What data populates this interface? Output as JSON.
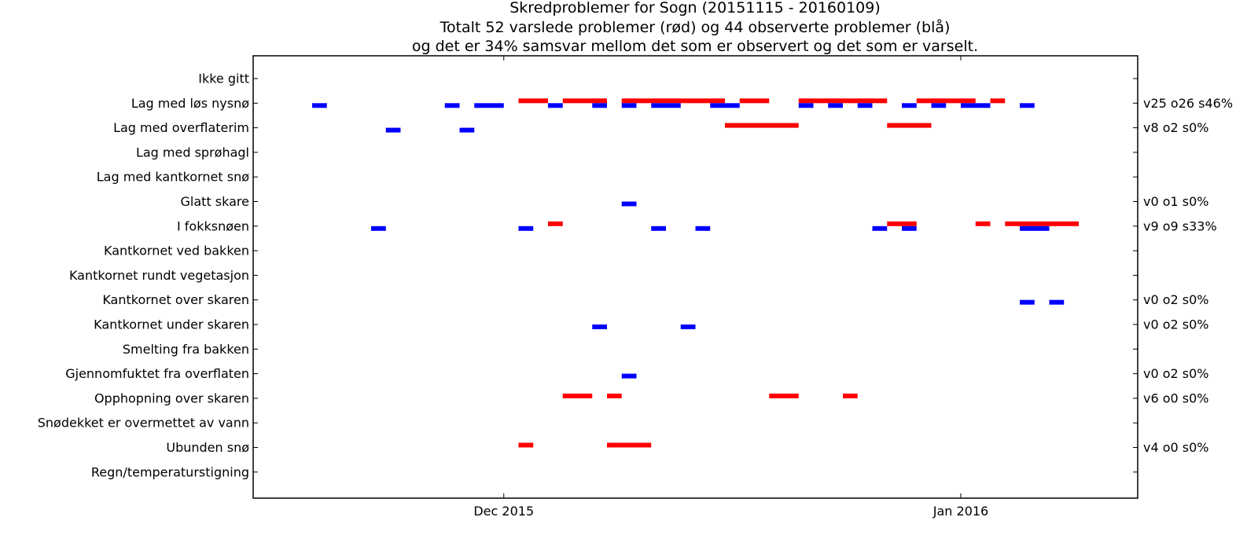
{
  "chart_data": {
    "type": "gantt",
    "title_lines": [
      "Skredproblemer for Sogn (20151115 - 20160109)",
      "Totalt 52 varslede problemer (rød) og 44 observerte problemer (blå)",
      "og det er 34% samsvar mellom det som er observert og det som er varselt."
    ],
    "x_range": [
      "2015-11-14",
      "2016-01-13"
    ],
    "x_ticks": [
      {
        "date": "2015-12-01",
        "label": "Dec 2015"
      },
      {
        "date": "2016-01-01",
        "label": "Jan 2016"
      }
    ],
    "categories": [
      "Ikke gitt",
      "Lag med løs nysnø",
      "Lag med overflaterim",
      "Lag med sprøhagl",
      "Lag med kantkornet snø",
      "Glatt skare",
      "I fokksnøen",
      "Kantkornet ved bakken",
      "Kantkornet rundt vegetasjon",
      "Kantkornet over skaren",
      "Kantkornet under skaren",
      "Smelting fra bakken",
      "Gjennomfuktet fra overflaten",
      "Opphopning over skaren",
      "Snødekket er overmettet av vann",
      "Ubunden snø",
      "Regn/temperaturstigning"
    ],
    "stats": {
      "Lag med løs nysnø": "v25 o26 s46%",
      "Lag med overflaterim": "v8 o2 s0%",
      "Glatt skare": "v0 o1 s0%",
      "I fokksnøen": "v9 o9 s33%",
      "Kantkornet over skaren": "v0 o2 s0%",
      "Kantkornet under skaren": "v0 o2 s0%",
      "Gjennomfuktet fra overflaten": "v0 o2 s0%",
      "Opphopning over skaren": "v6 o0 s0%",
      "Ubunden snø": "v4 o0 s0%"
    },
    "colors": {
      "forecast": "#ff0000",
      "observed": "#0000ff"
    },
    "series": [
      {
        "name": "varslet",
        "color": "#ff0000",
        "segments": [
          {
            "category": "Lag med løs nysnø",
            "start": "2015-12-02",
            "end": "2015-12-04"
          },
          {
            "category": "Lag med løs nysnø",
            "start": "2015-12-05",
            "end": "2015-12-08"
          },
          {
            "category": "Lag med løs nysnø",
            "start": "2015-12-09",
            "end": "2015-12-16"
          },
          {
            "category": "Lag med løs nysnø",
            "start": "2015-12-17",
            "end": "2015-12-19"
          },
          {
            "category": "Lag med løs nysnø",
            "start": "2015-12-21",
            "end": "2015-12-27"
          },
          {
            "category": "Lag med løs nysnø",
            "start": "2015-12-29",
            "end": "2016-01-02"
          },
          {
            "category": "Lag med løs nysnø",
            "start": "2016-01-03",
            "end": "2016-01-04"
          },
          {
            "category": "Lag med overflaterim",
            "start": "2015-12-16",
            "end": "2015-12-21"
          },
          {
            "category": "Lag med overflaterim",
            "start": "2015-12-27",
            "end": "2015-12-30"
          },
          {
            "category": "I fokksnøen",
            "start": "2015-12-04",
            "end": "2015-12-05"
          },
          {
            "category": "I fokksnøen",
            "start": "2015-12-27",
            "end": "2015-12-29"
          },
          {
            "category": "I fokksnøen",
            "start": "2016-01-02",
            "end": "2016-01-03"
          },
          {
            "category": "I fokksnøen",
            "start": "2016-01-04",
            "end": "2016-01-09"
          },
          {
            "category": "Opphopning over skaren",
            "start": "2015-12-05",
            "end": "2015-12-07"
          },
          {
            "category": "Opphopning over skaren",
            "start": "2015-12-08",
            "end": "2015-12-09"
          },
          {
            "category": "Opphopning over skaren",
            "start": "2015-12-19",
            "end": "2015-12-21"
          },
          {
            "category": "Opphopning over skaren",
            "start": "2015-12-24",
            "end": "2015-12-25"
          },
          {
            "category": "Ubunden snø",
            "start": "2015-12-02",
            "end": "2015-12-03"
          },
          {
            "category": "Ubunden snø",
            "start": "2015-12-08",
            "end": "2015-12-11"
          }
        ]
      },
      {
        "name": "observert",
        "color": "#0000ff",
        "segments": [
          {
            "category": "Lag med løs nysnø",
            "start": "2015-11-18",
            "end": "2015-11-19"
          },
          {
            "category": "Lag med løs nysnø",
            "start": "2015-11-27",
            "end": "2015-11-28"
          },
          {
            "category": "Lag med løs nysnø",
            "start": "2015-11-29",
            "end": "2015-12-01"
          },
          {
            "category": "Lag med løs nysnø",
            "start": "2015-12-04",
            "end": "2015-12-05"
          },
          {
            "category": "Lag med løs nysnø",
            "start": "2015-12-07",
            "end": "2015-12-08"
          },
          {
            "category": "Lag med løs nysnø",
            "start": "2015-12-09",
            "end": "2015-12-10"
          },
          {
            "category": "Lag med løs nysnø",
            "start": "2015-12-11",
            "end": "2015-12-13"
          },
          {
            "category": "Lag med løs nysnø",
            "start": "2015-12-15",
            "end": "2015-12-17"
          },
          {
            "category": "Lag med løs nysnø",
            "start": "2015-12-21",
            "end": "2015-12-22"
          },
          {
            "category": "Lag med løs nysnø",
            "start": "2015-12-23",
            "end": "2015-12-24"
          },
          {
            "category": "Lag med løs nysnø",
            "start": "2015-12-25",
            "end": "2015-12-26"
          },
          {
            "category": "Lag med løs nysnø",
            "start": "2015-12-28",
            "end": "2015-12-29"
          },
          {
            "category": "Lag med løs nysnø",
            "start": "2015-12-30",
            "end": "2015-12-31"
          },
          {
            "category": "Lag med løs nysnø",
            "start": "2016-01-01",
            "end": "2016-01-03"
          },
          {
            "category": "Lag med løs nysnø",
            "start": "2016-01-05",
            "end": "2016-01-06"
          },
          {
            "category": "Lag med overflaterim",
            "start": "2015-11-23",
            "end": "2015-11-24"
          },
          {
            "category": "Lag med overflaterim",
            "start": "2015-11-28",
            "end": "2015-11-29"
          },
          {
            "category": "Glatt skare",
            "start": "2015-12-09",
            "end": "2015-12-10"
          },
          {
            "category": "I fokksnøen",
            "start": "2015-11-22",
            "end": "2015-11-23"
          },
          {
            "category": "I fokksnøen",
            "start": "2015-12-02",
            "end": "2015-12-03"
          },
          {
            "category": "I fokksnøen",
            "start": "2015-12-11",
            "end": "2015-12-12"
          },
          {
            "category": "I fokksnøen",
            "start": "2015-12-14",
            "end": "2015-12-15"
          },
          {
            "category": "I fokksnøen",
            "start": "2015-12-26",
            "end": "2015-12-27"
          },
          {
            "category": "I fokksnøen",
            "start": "2015-12-28",
            "end": "2015-12-29"
          },
          {
            "category": "I fokksnøen",
            "start": "2016-01-05",
            "end": "2016-01-07"
          },
          {
            "category": "Kantkornet over skaren",
            "start": "2016-01-05",
            "end": "2016-01-06"
          },
          {
            "category": "Kantkornet over skaren",
            "start": "2016-01-07",
            "end": "2016-01-08"
          },
          {
            "category": "Kantkornet under skaren",
            "start": "2015-12-07",
            "end": "2015-12-08"
          },
          {
            "category": "Kantkornet under skaren",
            "start": "2015-12-13",
            "end": "2015-12-14"
          },
          {
            "category": "Gjennomfuktet fra overflaten",
            "start": "2015-12-09",
            "end": "2015-12-10"
          }
        ]
      }
    ]
  }
}
